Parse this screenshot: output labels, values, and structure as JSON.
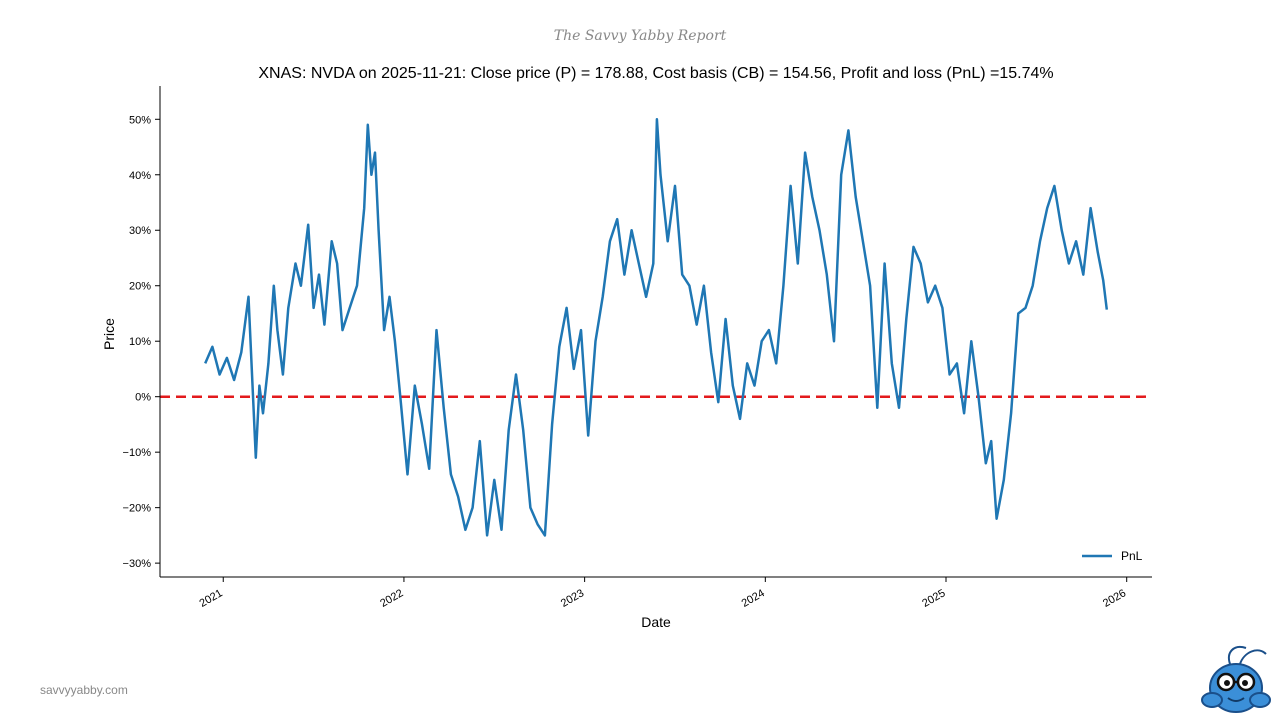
{
  "header": {
    "brand": "The Savvy Yabby Report"
  },
  "footer": {
    "site": "savvyyabby.com"
  },
  "colors": {
    "line": "#1f77b4",
    "zero_line": "#e31a1c",
    "axis": "#000000"
  },
  "chart_data": {
    "type": "line",
    "title": "XNAS: NVDA on 2025-11-21: Close price (P) = 178.88, Cost basis (CB) = 154.56, Profit and loss (PnL) =15.74%",
    "xlabel": "Date",
    "ylabel": "Price",
    "legend": {
      "entries": [
        "PnL"
      ],
      "placement": "bottom-right"
    },
    "grid": false,
    "xlim": [
      2020.65,
      2026.14
    ],
    "ylim": [
      -32.5,
      56
    ],
    "x_ticks": [
      {
        "value": 2021,
        "label": "2021"
      },
      {
        "value": 2022,
        "label": "2022"
      },
      {
        "value": 2023,
        "label": "2023"
      },
      {
        "value": 2024,
        "label": "2024"
      },
      {
        "value": 2025,
        "label": "2025"
      },
      {
        "value": 2026,
        "label": "2026"
      }
    ],
    "y_ticks": [
      {
        "value": 50,
        "label": "50%"
      },
      {
        "value": 40,
        "label": "40%"
      },
      {
        "value": 30,
        "label": "30%"
      },
      {
        "value": 20,
        "label": "20%"
      },
      {
        "value": 10,
        "label": "10%"
      },
      {
        "value": 0,
        "label": "0%"
      },
      {
        "value": -10,
        "label": "−10%"
      },
      {
        "value": -20,
        "label": "−20%"
      },
      {
        "value": -30,
        "label": "−30%"
      }
    ],
    "reference_line": {
      "y": 0,
      "style": "dashed"
    },
    "series": [
      {
        "name": "PnL",
        "x": [
          2020.9,
          2020.94,
          2020.98,
          2021.02,
          2021.06,
          2021.1,
          2021.14,
          2021.18,
          2021.2,
          2021.22,
          2021.25,
          2021.28,
          2021.3,
          2021.33,
          2021.36,
          2021.4,
          2021.43,
          2021.47,
          2021.5,
          2021.53,
          2021.56,
          2021.6,
          2021.63,
          2021.66,
          2021.7,
          2021.74,
          2021.78,
          2021.8,
          2021.82,
          2021.84,
          2021.86,
          2021.89,
          2021.92,
          2021.95,
          2021.98,
          2022.02,
          2022.06,
          2022.1,
          2022.14,
          2022.18,
          2022.22,
          2022.26,
          2022.3,
          2022.34,
          2022.38,
          2022.42,
          2022.46,
          2022.5,
          2022.54,
          2022.58,
          2022.62,
          2022.66,
          2022.7,
          2022.74,
          2022.78,
          2022.82,
          2022.86,
          2022.9,
          2022.94,
          2022.98,
          2023.02,
          2023.06,
          2023.1,
          2023.14,
          2023.18,
          2023.22,
          2023.26,
          2023.3,
          2023.34,
          2023.38,
          2023.4,
          2023.42,
          2023.46,
          2023.5,
          2023.54,
          2023.58,
          2023.62,
          2023.66,
          2023.7,
          2023.74,
          2023.78,
          2023.82,
          2023.86,
          2023.9,
          2023.94,
          2023.98,
          2024.02,
          2024.06,
          2024.1,
          2024.14,
          2024.18,
          2024.22,
          2024.26,
          2024.3,
          2024.34,
          2024.38,
          2024.42,
          2024.46,
          2024.5,
          2024.54,
          2024.58,
          2024.62,
          2024.66,
          2024.7,
          2024.74,
          2024.78,
          2024.82,
          2024.86,
          2024.9,
          2024.94,
          2024.98,
          2025.02,
          2025.06,
          2025.1,
          2025.14,
          2025.18,
          2025.22,
          2025.25,
          2025.28,
          2025.32,
          2025.36,
          2025.4,
          2025.44,
          2025.48,
          2025.52,
          2025.56,
          2025.6,
          2025.64,
          2025.68,
          2025.72,
          2025.76,
          2025.8,
          2025.84,
          2025.87,
          2025.89
        ],
        "values": [
          6,
          9,
          4,
          7,
          3,
          8,
          18,
          -11,
          2,
          -3,
          6,
          20,
          12,
          4,
          16,
          24,
          20,
          31,
          16,
          22,
          13,
          28,
          24,
          12,
          16,
          20,
          34,
          49,
          40,
          44,
          30,
          12,
          18,
          10,
          0,
          -14,
          2,
          -5,
          -13,
          12,
          -2,
          -14,
          -18,
          -24,
          -20,
          -8,
          -25,
          -15,
          -24,
          -6,
          4,
          -6,
          -20,
          -23,
          -25,
          -5,
          9,
          16,
          5,
          12,
          -7,
          10,
          18,
          28,
          32,
          22,
          30,
          24,
          18,
          24,
          50,
          40,
          28,
          38,
          22,
          20,
          13,
          20,
          8,
          -1,
          14,
          2,
          -4,
          6,
          2,
          10,
          12,
          6,
          20,
          38,
          24,
          44,
          36,
          30,
          22,
          10,
          40,
          48,
          36,
          28,
          20,
          -2,
          24,
          6,
          -2,
          14,
          27,
          24,
          17,
          20,
          16,
          4,
          6,
          -3,
          10,
          0,
          -12,
          -8,
          -22,
          -15,
          -3,
          15,
          16,
          20,
          28,
          34,
          38,
          30,
          24,
          28,
          22,
          34,
          26,
          21,
          15.7
        ]
      }
    ]
  }
}
